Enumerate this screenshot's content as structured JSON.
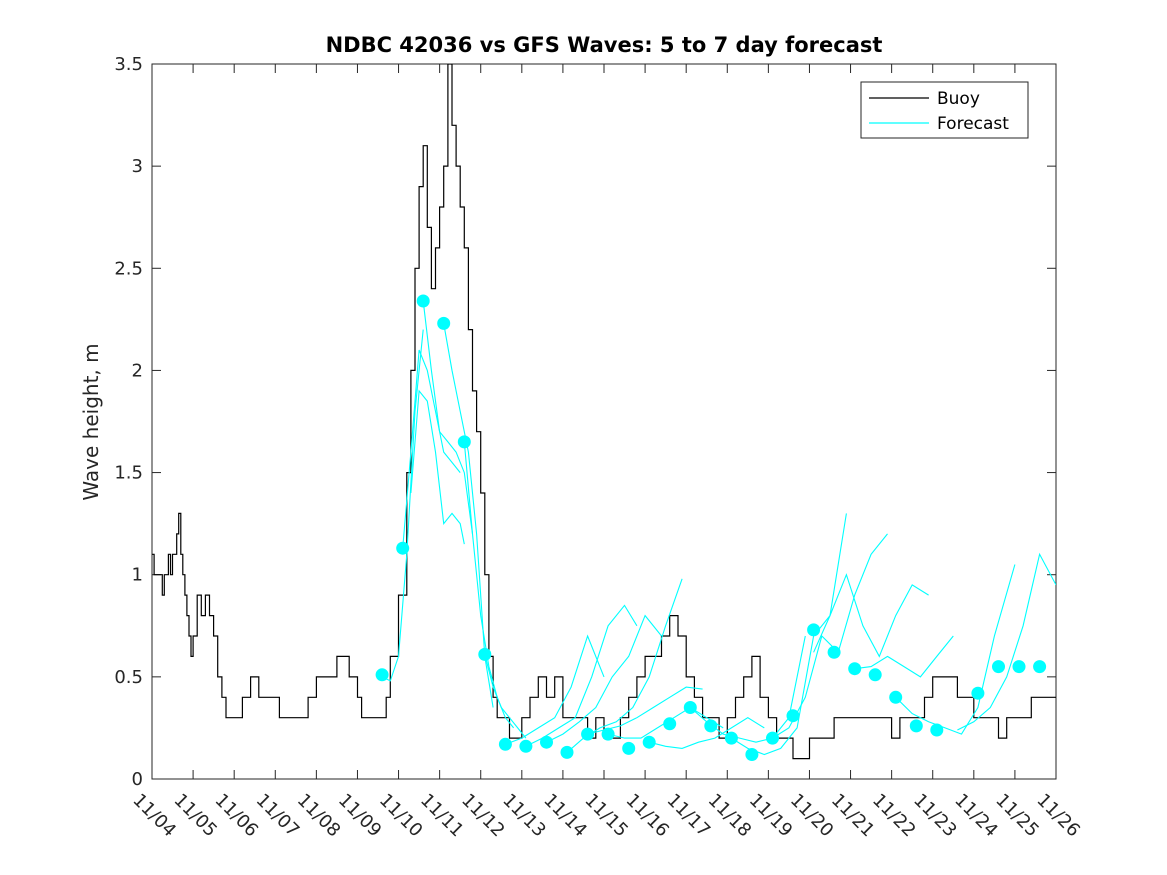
{
  "chart_data": {
    "type": "line",
    "title": "NDBC 42036 vs GFS Waves: 5 to 7 day forecast",
    "xlabel": "",
    "ylabel": "Wave height, m",
    "xlim": [
      0,
      22
    ],
    "ylim": [
      0,
      3.5
    ],
    "x_tick_labels": [
      "11/04",
      "11/05",
      "11/06",
      "11/07",
      "11/08",
      "11/09",
      "11/10",
      "11/11",
      "11/12",
      "11/13",
      "11/14",
      "11/15",
      "11/16",
      "11/17",
      "11/18",
      "11/19",
      "11/20",
      "11/21",
      "11/22",
      "11/23",
      "11/24",
      "11/25",
      "11/26"
    ],
    "y_tick_values": [
      0,
      0.5,
      1,
      1.5,
      2,
      2.5,
      3,
      3.5
    ],
    "y_tick_labels": [
      "0",
      "0.5",
      "1",
      "1.5",
      "2",
      "2.5",
      "3",
      "3.5"
    ],
    "legend": {
      "position": "top-right",
      "entries": [
        "Buoy",
        "Forecast"
      ]
    },
    "colors": {
      "buoy": "#000000",
      "forecast": "#00ffff",
      "axis": "#262626"
    },
    "buoy": {
      "name": "Buoy",
      "x": [
        0,
        0.05,
        0.1,
        0.15,
        0.2,
        0.25,
        0.3,
        0.35,
        0.4,
        0.45,
        0.5,
        0.55,
        0.6,
        0.65,
        0.7,
        0.75,
        0.8,
        0.85,
        0.9,
        0.95,
        1.0,
        1.1,
        1.2,
        1.3,
        1.4,
        1.5,
        1.6,
        1.7,
        1.8,
        1.9,
        2.0,
        2.2,
        2.4,
        2.6,
        2.8,
        3.0,
        3.1,
        3.3,
        3.5,
        3.8,
        4.0,
        4.5,
        4.8,
        5.0,
        5.1,
        5.3,
        5.5,
        5.7,
        5.8,
        6.0,
        6.2,
        6.3,
        6.4,
        6.5,
        6.6,
        6.7,
        6.8,
        6.9,
        7.0,
        7.1,
        7.2,
        7.3,
        7.4,
        7.5,
        7.6,
        7.7,
        7.8,
        7.9,
        8.0,
        8.1,
        8.2,
        8.3,
        8.4,
        8.5,
        8.6,
        8.7,
        8.8,
        8.9,
        9.0,
        9.2,
        9.4,
        9.6,
        9.8,
        10.0,
        10.2,
        10.4,
        10.6,
        10.8,
        11.0,
        11.2,
        11.4,
        11.6,
        11.8,
        12.0,
        12.2,
        12.4,
        12.6,
        12.8,
        13.0,
        13.2,
        13.4,
        13.6,
        13.8,
        14.0,
        14.2,
        14.4,
        14.6,
        14.8,
        15.0,
        15.2,
        15.4,
        15.6,
        15.8,
        16.0,
        16.2,
        16.4,
        16.6,
        16.8,
        17.0,
        17.2,
        17.4,
        17.6,
        17.8,
        18.0,
        18.2,
        18.4,
        18.6,
        18.8,
        19.0,
        19.2,
        19.4,
        19.6,
        19.8,
        20.0,
        20.2,
        20.4,
        20.6,
        20.8,
        21.0,
        21.2,
        21.4,
        21.6,
        21.8,
        22.0
      ],
      "values": [
        1.1,
        1.0,
        1.0,
        1.0,
        1.0,
        0.9,
        1.0,
        1.0,
        1.1,
        1.0,
        1.1,
        1.1,
        1.2,
        1.3,
        1.1,
        1.0,
        0.9,
        0.8,
        0.7,
        0.6,
        0.7,
        0.9,
        0.8,
        0.9,
        0.8,
        0.7,
        0.5,
        0.4,
        0.3,
        0.3,
        0.3,
        0.4,
        0.5,
        0.4,
        0.4,
        0.4,
        0.3,
        0.3,
        0.3,
        0.4,
        0.5,
        0.6,
        0.5,
        0.4,
        0.3,
        0.3,
        0.3,
        0.4,
        0.6,
        0.9,
        1.5,
        2.0,
        2.5,
        2.9,
        3.1,
        2.7,
        2.4,
        2.6,
        2.8,
        3.0,
        3.5,
        3.2,
        3.0,
        2.8,
        2.6,
        2.2,
        1.9,
        1.7,
        1.4,
        1.0,
        0.6,
        0.4,
        0.3,
        0.3,
        0.3,
        0.2,
        0.2,
        0.2,
        0.3,
        0.4,
        0.5,
        0.4,
        0.5,
        0.3,
        0.3,
        0.3,
        0.2,
        0.3,
        0.2,
        0.2,
        0.3,
        0.4,
        0.5,
        0.6,
        0.6,
        0.7,
        0.8,
        0.7,
        0.5,
        0.4,
        0.3,
        0.3,
        0.2,
        0.3,
        0.4,
        0.5,
        0.6,
        0.4,
        0.3,
        0.2,
        0.2,
        0.1,
        0.1,
        0.2,
        0.2,
        0.2,
        0.3,
        0.3,
        0.3,
        0.3,
        0.3,
        0.3,
        0.3,
        0.2,
        0.3,
        0.3,
        0.3,
        0.4,
        0.5,
        0.5,
        0.5,
        0.4,
        0.4,
        0.3,
        0.3,
        0.3,
        0.2,
        0.3,
        0.3,
        0.3,
        0.4,
        0.4,
        0.4,
        0.4
      ]
    },
    "forecast_start_points": {
      "name": "Forecast",
      "x": [
        5.6,
        6.1,
        6.6,
        7.1,
        7.6,
        8.1,
        8.6,
        9.1,
        9.6,
        10.1,
        10.6,
        11.1,
        11.6,
        12.1,
        12.6,
        13.1,
        13.6,
        14.1,
        14.6,
        15.1,
        15.6,
        16.1,
        16.6,
        17.1,
        17.6,
        18.1,
        18.6,
        19.1,
        20.1,
        20.6,
        21.1,
        21.6
      ],
      "values": [
        0.51,
        1.13,
        2.34,
        2.23,
        1.65,
        0.61,
        0.17,
        0.16,
        0.18,
        0.13,
        0.22,
        0.22,
        0.15,
        0.18,
        0.27,
        0.35,
        0.26,
        0.2,
        0.12,
        0.2,
        0.31,
        0.73,
        0.62,
        0.54,
        0.51,
        0.4,
        0.26,
        0.24,
        0.42,
        0.55,
        0.55,
        0.55
      ]
    },
    "forecast_series": [
      {
        "x": [
          5.6,
          5.8,
          6.0,
          6.2,
          6.4,
          6.6
        ],
        "values": [
          0.5,
          0.48,
          0.6,
          1.1,
          1.8,
          2.2
        ]
      },
      {
        "x": [
          6.1,
          6.3,
          6.5,
          6.7,
          6.9,
          7.1,
          7.3,
          7.5
        ],
        "values": [
          1.13,
          1.6,
          2.1,
          2.0,
          1.8,
          1.6,
          1.55,
          1.5
        ]
      },
      {
        "x": [
          6.3,
          6.5,
          6.7,
          6.9,
          7.1,
          7.3,
          7.5,
          7.6
        ],
        "values": [
          1.4,
          1.9,
          1.85,
          1.6,
          1.25,
          1.3,
          1.25,
          1.15
        ]
      },
      {
        "x": [
          6.6,
          6.8,
          7.0,
          7.2,
          7.4,
          7.6,
          7.8
        ],
        "values": [
          2.34,
          2.0,
          1.7,
          1.65,
          1.6,
          1.5,
          1.2
        ]
      },
      {
        "x": [
          7.1,
          7.3,
          7.5,
          7.7,
          7.9,
          8.1,
          8.3
        ],
        "values": [
          2.23,
          2.0,
          1.8,
          1.6,
          1.2,
          0.6,
          0.35
        ]
      },
      {
        "x": [
          7.6,
          7.8,
          8.0,
          8.2,
          8.4,
          8.6,
          8.8
        ],
        "values": [
          1.65,
          1.2,
          0.8,
          0.55,
          0.4,
          0.3,
          0.25
        ]
      },
      {
        "x": [
          8.1,
          8.3,
          8.5,
          8.7,
          8.9,
          9.1
        ],
        "values": [
          0.61,
          0.45,
          0.35,
          0.3,
          0.25,
          0.2
        ]
      },
      {
        "x": [
          8.6,
          9.0,
          9.4,
          9.8,
          10.2,
          10.6,
          11.0
        ],
        "values": [
          0.17,
          0.2,
          0.25,
          0.3,
          0.45,
          0.7,
          0.5
        ]
      },
      {
        "x": [
          9.1,
          9.5,
          9.9,
          10.3,
          10.7,
          11.1,
          11.5,
          11.8
        ],
        "values": [
          0.16,
          0.2,
          0.25,
          0.3,
          0.5,
          0.75,
          0.85,
          0.75
        ]
      },
      {
        "x": [
          9.6,
          10.0,
          10.4,
          10.8,
          11.2,
          11.6,
          12.0,
          12.4
        ],
        "values": [
          0.18,
          0.22,
          0.28,
          0.35,
          0.5,
          0.6,
          0.8,
          0.7
        ]
      },
      {
        "x": [
          10.1,
          10.5,
          10.9,
          11.3,
          11.7,
          12.1,
          12.5,
          12.9
        ],
        "values": [
          0.13,
          0.2,
          0.25,
          0.28,
          0.35,
          0.5,
          0.75,
          0.98
        ]
      },
      {
        "x": [
          10.6,
          11.0,
          11.4,
          11.8,
          12.2,
          12.6,
          13.0,
          13.4
        ],
        "values": [
          0.22,
          0.24,
          0.26,
          0.3,
          0.35,
          0.4,
          0.45,
          0.44
        ]
      },
      {
        "x": [
          11.1,
          11.5,
          11.9,
          12.3,
          12.7,
          13.1,
          13.5,
          13.9
        ],
        "values": [
          0.22,
          0.2,
          0.2,
          0.25,
          0.3,
          0.35,
          0.3,
          0.25
        ]
      },
      {
        "x": [
          12.1,
          12.5,
          12.9,
          13.3,
          13.7,
          14.1,
          14.5,
          14.9
        ],
        "values": [
          0.18,
          0.16,
          0.15,
          0.18,
          0.2,
          0.25,
          0.3,
          0.25
        ]
      },
      {
        "x": [
          13.1,
          13.5,
          13.9,
          14.3,
          14.7,
          15.1,
          15.5,
          15.9
        ],
        "values": [
          0.35,
          0.28,
          0.22,
          0.2,
          0.18,
          0.2,
          0.3,
          0.7
        ]
      },
      {
        "x": [
          14.1,
          14.5,
          14.9,
          15.3,
          15.7,
          16.1,
          16.5,
          16.9
        ],
        "values": [
          0.2,
          0.15,
          0.12,
          0.15,
          0.25,
          0.7,
          0.8,
          1.3
        ]
      },
      {
        "x": [
          15.1,
          15.5,
          15.9,
          16.3,
          16.7,
          17.1,
          17.5,
          17.9
        ],
        "values": [
          0.2,
          0.25,
          0.4,
          0.7,
          0.62,
          0.9,
          1.1,
          1.2
        ]
      },
      {
        "x": [
          16.1,
          16.5,
          16.9,
          17.3,
          17.7,
          18.1,
          18.5,
          18.9
        ],
        "values": [
          0.62,
          0.8,
          1.0,
          0.75,
          0.6,
          0.8,
          0.95,
          0.9
        ]
      },
      {
        "x": [
          17.1,
          17.5,
          17.9,
          18.3,
          18.7,
          19.1,
          19.5
        ],
        "values": [
          0.54,
          0.55,
          0.6,
          0.55,
          0.5,
          0.6,
          0.7
        ]
      },
      {
        "x": [
          18.1,
          18.5,
          18.9,
          19.3,
          19.7,
          20.1,
          20.5,
          21.0
        ],
        "values": [
          0.4,
          0.32,
          0.28,
          0.25,
          0.22,
          0.35,
          0.7,
          1.05
        ]
      },
      {
        "x": [
          19.6,
          20.0,
          20.4,
          20.8,
          21.2,
          21.6,
          22.0
        ],
        "values": [
          0.24,
          0.28,
          0.35,
          0.5,
          0.75,
          1.1,
          0.95
        ]
      }
    ]
  }
}
